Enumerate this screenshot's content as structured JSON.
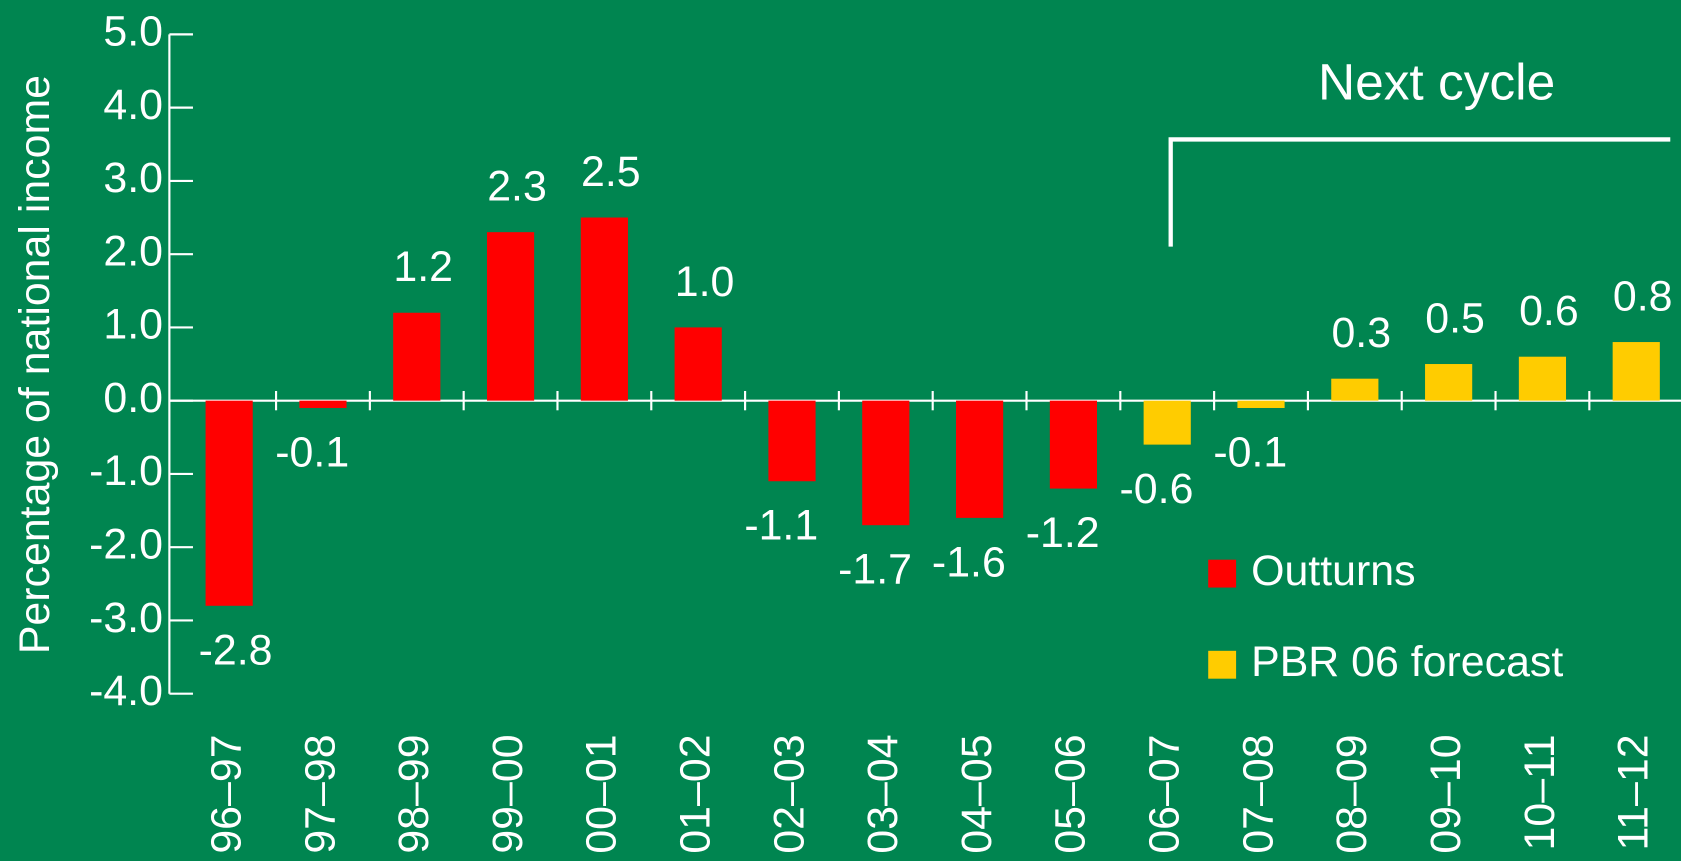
{
  "chart_data": {
    "type": "bar",
    "y_label": "Percentage of national income",
    "annotation": "Next cycle",
    "categories": [
      "96–97",
      "97–98",
      "98–99",
      "99–00",
      "00–01",
      "01–02",
      "02–03",
      "03–04",
      "04–05",
      "05–06",
      "06–07",
      "07–08",
      "08–09",
      "09–10",
      "10–11",
      "11–12"
    ],
    "series": [
      {
        "name": "Outturns",
        "color": "#ff0000",
        "values": [
          -2.8,
          -0.1,
          1.2,
          2.3,
          2.5,
          1.0,
          -1.1,
          -1.7,
          -1.6,
          -1.2,
          null,
          null,
          null,
          null,
          null,
          null
        ],
        "value_labels": [
          "-2.8",
          "-0.1",
          "1.2",
          "2.3",
          "2.5",
          "1.0",
          "-1.1",
          "-1.7",
          "-1.6",
          "-1.2",
          null,
          null,
          null,
          null,
          null,
          null
        ]
      },
      {
        "name": "PBR 06 forecast",
        "color": "#ffcc00",
        "values": [
          null,
          null,
          null,
          null,
          null,
          null,
          null,
          null,
          null,
          null,
          -0.6,
          -0.1,
          0.3,
          0.5,
          0.6,
          0.8
        ],
        "value_labels": [
          null,
          null,
          null,
          null,
          null,
          null,
          null,
          null,
          null,
          null,
          "-0.6",
          "-0.1",
          "0.3",
          "0.5",
          "0.6",
          "0.8"
        ]
      }
    ],
    "ylim": [
      -4,
      5
    ],
    "yticks": [
      {
        "value": -4,
        "label": "-4.0"
      },
      {
        "value": -3,
        "label": "-3.0"
      },
      {
        "value": -2,
        "label": "-2.0"
      },
      {
        "value": -1,
        "label": "-1.0"
      },
      {
        "value": 0,
        "label": "0.0"
      },
      {
        "value": 1,
        "label": "1.0"
      },
      {
        "value": 2,
        "label": "2.0"
      },
      {
        "value": 3,
        "label": "3.0"
      },
      {
        "value": 4,
        "label": "4.0"
      },
      {
        "value": 5,
        "label": "5.0"
      }
    ],
    "grid": false,
    "legend": "lower right"
  }
}
